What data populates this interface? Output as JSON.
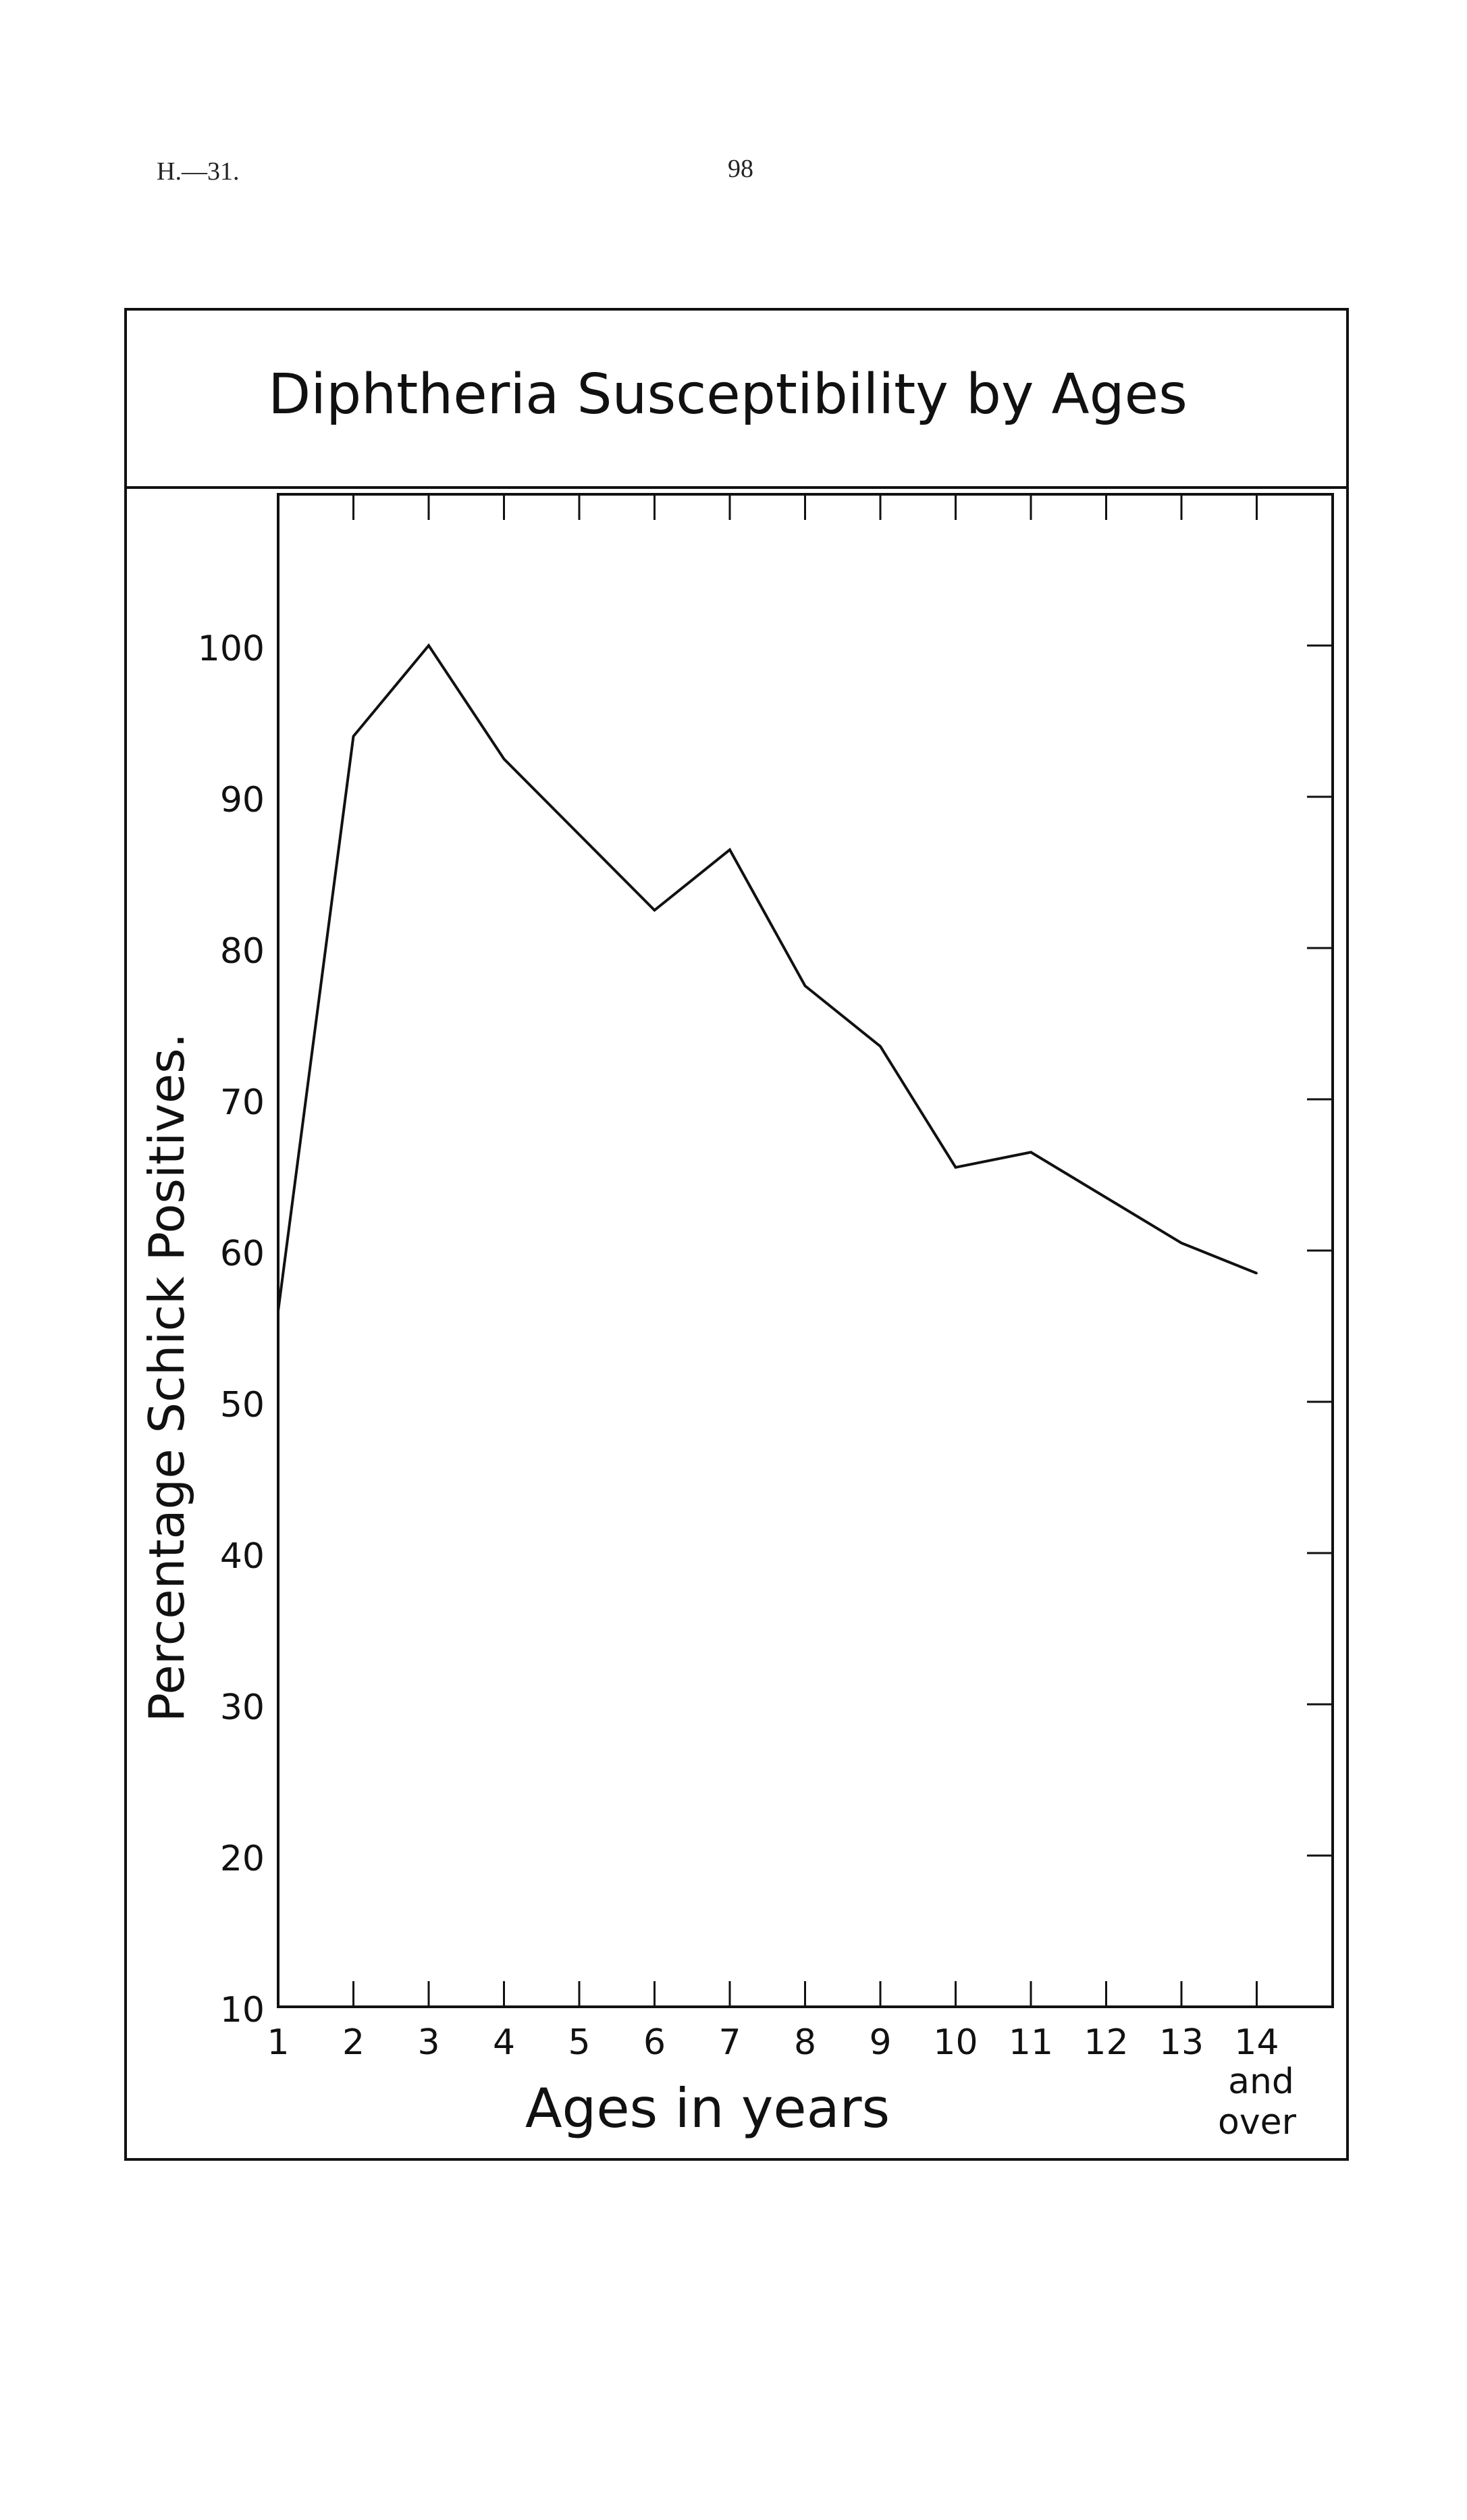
{
  "header": {
    "ref": "H.—31.",
    "page": "98"
  },
  "chart_data": {
    "type": "line",
    "title": "Diphtheria  Susceptibility  by  Ages",
    "xlabel": "Ages  in  years",
    "ylabel": "Percentage  Schick  Positives.",
    "categories": [
      "1",
      "2",
      "3",
      "4",
      "5",
      "6",
      "7",
      "8",
      "9",
      "10",
      "11",
      "12",
      "13",
      "14"
    ],
    "last_category_note": [
      "and",
      "over"
    ],
    "ylim": [
      10,
      110
    ],
    "yticks": [
      10,
      20,
      30,
      40,
      50,
      60,
      70,
      80,
      90,
      100
    ],
    "series": [
      {
        "values": [
          56,
          94,
          100,
          92.5,
          87.5,
          82.5,
          86.5,
          77.5,
          73.5,
          65.5,
          66.5,
          63.5,
          60.5,
          58.5
        ]
      }
    ],
    "grid": false,
    "legend": "none",
    "line_color": "#111111"
  }
}
